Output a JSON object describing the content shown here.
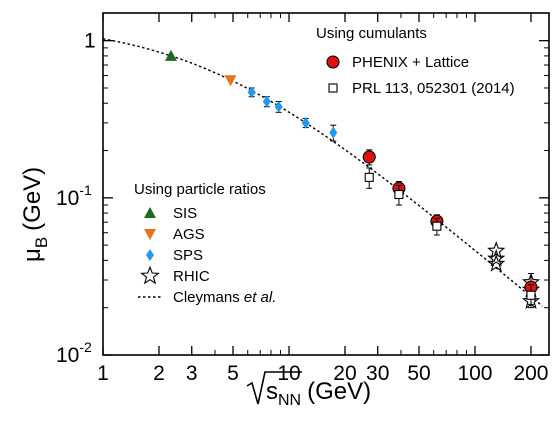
{
  "chart_data": {
    "type": "scatter",
    "x_scale": "log",
    "y_scale": "log",
    "xlim": [
      1,
      250
    ],
    "ylim": [
      0.01,
      1.5
    ],
    "xlabel": "√sNN (GeV)",
    "xlabel_parts": {
      "sub": "NN",
      "base": "s",
      "unit": "(GeV)"
    },
    "ylabel": "μB (GeV)",
    "ylabel_parts": {
      "base": "μ",
      "sub": "B",
      "unit": "(GeV)"
    },
    "x_ticks": [
      {
        "v": 1,
        "label": "1"
      },
      {
        "v": 2,
        "label": "2"
      },
      {
        "v": 3,
        "label": "3"
      },
      {
        "v": 5,
        "label": "5"
      },
      {
        "v": 10,
        "label": "10"
      },
      {
        "v": 20,
        "label": "20"
      },
      {
        "v": 30,
        "label": "30"
      },
      {
        "v": 50,
        "label": "50"
      },
      {
        "v": 100,
        "label": "100"
      },
      {
        "v": 200,
        "label": "200"
      }
    ],
    "y_ticks": [
      {
        "v": 1,
        "base": "1",
        "exp": ""
      },
      {
        "v": 0.1,
        "base": "10",
        "exp": "-1"
      },
      {
        "v": 0.01,
        "base": "10",
        "exp": "-2"
      }
    ],
    "legend": {
      "cumulants_title": "Using cumulants",
      "ratios_title": "Using particle ratios",
      "cleymans_label": "Cleymans",
      "cleymans_italic": "et al."
    },
    "series": [
      {
        "name": "SIS",
        "marker": "triangle-up",
        "color": "#1e6b1e",
        "points": [
          {
            "x": 2.32,
            "y": 0.8
          }
        ]
      },
      {
        "name": "AGS",
        "marker": "triangle-down",
        "color": "#e8731c",
        "points": [
          {
            "x": 4.85,
            "y": 0.56
          }
        ]
      },
      {
        "name": "SPS",
        "marker": "diamond",
        "color": "#2299ee",
        "points": [
          {
            "x": 6.3,
            "y": 0.47,
            "err": 0.03
          },
          {
            "x": 7.6,
            "y": 0.41,
            "err": 0.03
          },
          {
            "x": 8.8,
            "y": 0.38,
            "err": 0.03
          },
          {
            "x": 12.3,
            "y": 0.3,
            "err": 0.02
          },
          {
            "x": 17.3,
            "y": 0.26,
            "err": 0.03
          }
        ]
      },
      {
        "name": "RHIC",
        "marker": "star-open",
        "color": "#000000",
        "points": [
          {
            "x": 130,
            "y": 0.046
          },
          {
            "x": 130,
            "y": 0.041
          },
          {
            "x": 130,
            "y": 0.038
          },
          {
            "x": 200,
            "y": 0.029
          },
          {
            "x": 200,
            "y": 0.026
          },
          {
            "x": 200,
            "y": 0.022
          }
        ]
      },
      {
        "name": "PHENIX + Lattice",
        "marker": "circle-filled",
        "color": "#e01010",
        "points": [
          {
            "x": 27,
            "y": 0.182,
            "err": 0.02
          },
          {
            "x": 39,
            "y": 0.115,
            "err": 0.012
          },
          {
            "x": 62.4,
            "y": 0.071,
            "err": 0.007
          },
          {
            "x": 200,
            "y": 0.027,
            "err": 0.006
          }
        ]
      },
      {
        "name": "PRL 113, 052301 (2014)",
        "marker": "square-open",
        "color": "#000000",
        "points": [
          {
            "x": 27,
            "y": 0.135,
            "err": 0.02
          },
          {
            "x": 39,
            "y": 0.105,
            "err": 0.015
          },
          {
            "x": 62.4,
            "y": 0.066,
            "err": 0.008
          },
          {
            "x": 200,
            "y": 0.024,
            "err": 0.004
          }
        ]
      },
      {
        "name": "Cleymans et al.",
        "marker": "dotted-line",
        "color": "#000000",
        "formula": "mu_B = 1.308 / (1 + 0.273 * sqrt_s)"
      }
    ]
  }
}
